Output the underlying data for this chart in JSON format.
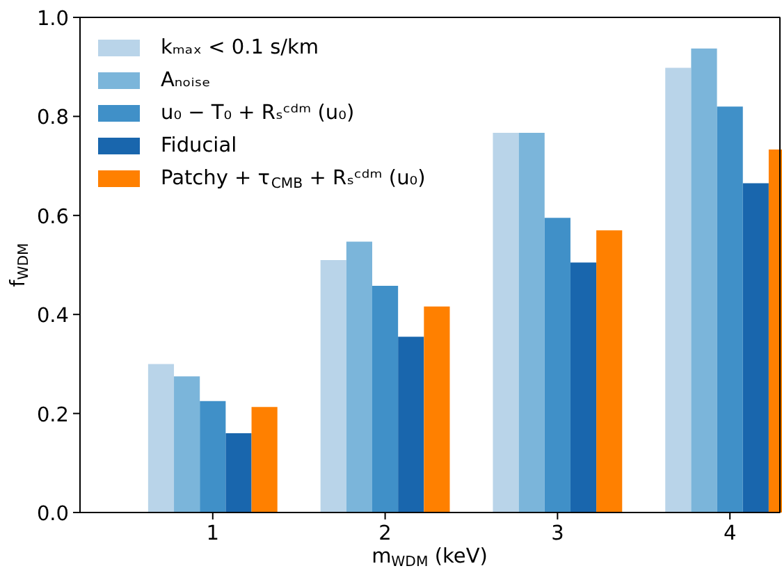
{
  "chart_data": {
    "type": "bar",
    "xlabel": "m$_{WDM}$ (keV)",
    "ylabel": "f$_{WDM}$",
    "x": [
      1,
      2,
      3,
      4
    ],
    "xlim": [
      0.23,
      4.29
    ],
    "xticks": [
      1,
      2,
      3,
      4
    ],
    "ylim": [
      0,
      1.0
    ],
    "yticks": [
      {
        "value": 0,
        "label": "0.0"
      },
      0.2,
      0.4,
      0.6,
      0.8,
      {
        "value": 1,
        "label": "1.0"
      }
    ],
    "series": [
      {
        "name": "kₘₐₓ <  0.1 s/km",
        "color": "#b9d4e9",
        "values": [
          0.3,
          0.51,
          0.767,
          0.898
        ]
      },
      {
        "name": "Aₙₒᵢₛₑ",
        "color": "#7bb5da",
        "values": [
          0.275,
          0.547,
          0.767,
          0.937
        ]
      },
      {
        "name": "u₀ − T₀ + Rₛᶜᵈᵐ (u₀)",
        "color": "#4090c8",
        "values": [
          0.225,
          0.458,
          0.595,
          0.82
        ]
      },
      {
        "name": "Fiducial",
        "color": "#1966ad",
        "values": [
          0.16,
          0.355,
          0.505,
          0.665
        ]
      },
      {
        "name": "Patchy + τ$_{CMB}$ + Rₛᶜᵈᵐ (u₀)",
        "color": "#ff8000",
        "values": [
          0.213,
          0.416,
          0.57,
          0.733
        ]
      }
    ],
    "legend": "top left",
    "grid": false
  }
}
